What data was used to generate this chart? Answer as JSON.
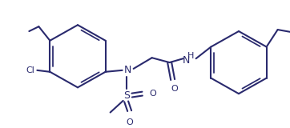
{
  "bg_color": "#ffffff",
  "line_color": "#2a2a6e",
  "lw": 1.5,
  "figsize": [
    3.62,
    1.6
  ],
  "dpi": 100,
  "xlim": [
    0,
    362
  ],
  "ylim": [
    0,
    160
  ]
}
